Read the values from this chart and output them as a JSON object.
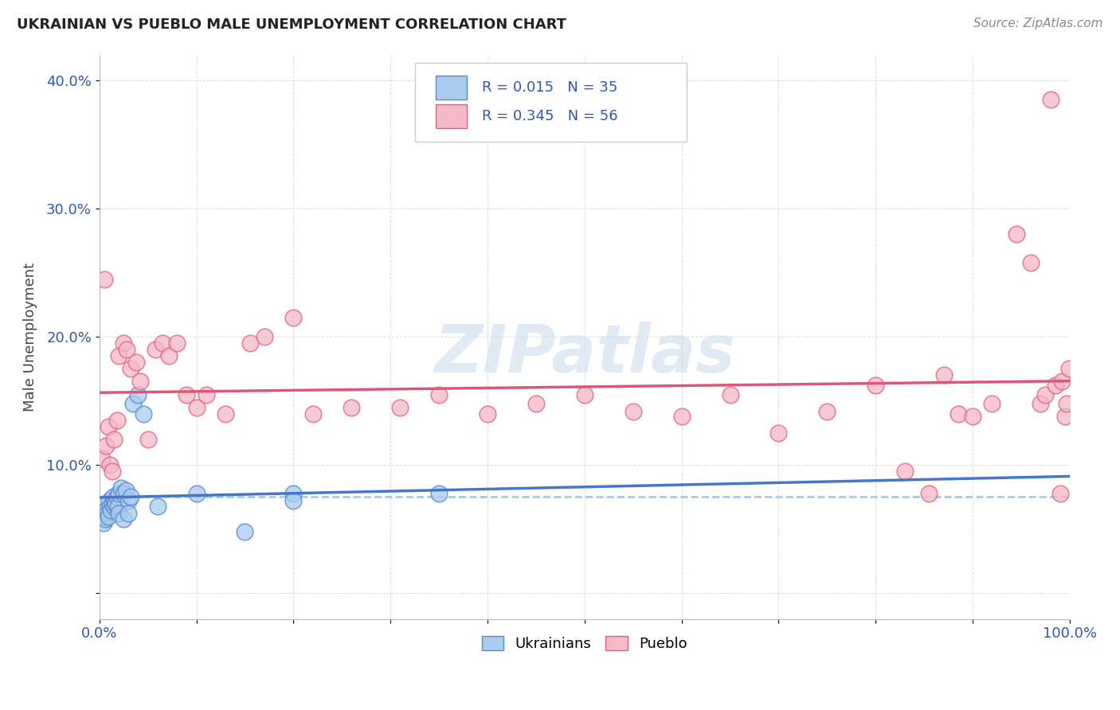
{
  "title": "UKRAINIAN VS PUEBLO MALE UNEMPLOYMENT CORRELATION CHART",
  "source_text": "Source: ZipAtlas.com",
  "ylabel": "Male Unemployment",
  "xlim": [
    0,
    1.0
  ],
  "ylim": [
    -0.02,
    0.42
  ],
  "xticks": [
    0.0,
    0.1,
    0.2,
    0.3,
    0.4,
    0.5,
    0.6,
    0.7,
    0.8,
    0.9,
    1.0
  ],
  "xticklabels": [
    "0.0%",
    "",
    "",
    "",
    "",
    "",
    "",
    "",
    "",
    "",
    "100.0%"
  ],
  "yticks": [
    0.0,
    0.1,
    0.2,
    0.3,
    0.4
  ],
  "yticklabels": [
    "",
    "10.0%",
    "20.0%",
    "30.0%",
    "40.0%"
  ],
  "legend_R1": "R = 0.015",
  "legend_N1": "N = 35",
  "legend_R2": "R = 0.345",
  "legend_N2": "N = 56",
  "ukr_color": "#aaccee",
  "pueblo_color": "#f5b8c8",
  "ukr_edge_color": "#5588cc",
  "pueblo_edge_color": "#e06080",
  "ukr_line_color": "#4477cc",
  "pueblo_line_color": "#dd5577",
  "ukr_dash_color": "#88bbee",
  "ukr_scatter_x": [
    0.003,
    0.004,
    0.005,
    0.006,
    0.007,
    0.008,
    0.009,
    0.01,
    0.011,
    0.012,
    0.013,
    0.014,
    0.015,
    0.016,
    0.017,
    0.018,
    0.019,
    0.02,
    0.022,
    0.025,
    0.027,
    0.03,
    0.032,
    0.035,
    0.04,
    0.045,
    0.06,
    0.1,
    0.15,
    0.2,
    0.02,
    0.025,
    0.03,
    0.2,
    0.35
  ],
  "ukr_scatter_y": [
    0.062,
    0.055,
    0.06,
    0.058,
    0.065,
    0.063,
    0.06,
    0.072,
    0.068,
    0.065,
    0.07,
    0.075,
    0.068,
    0.072,
    0.07,
    0.075,
    0.068,
    0.078,
    0.082,
    0.078,
    0.08,
    0.072,
    0.075,
    0.148,
    0.155,
    0.14,
    0.068,
    0.078,
    0.048,
    0.078,
    0.062,
    0.058,
    0.062,
    0.072,
    0.078
  ],
  "pueblo_scatter_x": [
    0.003,
    0.005,
    0.007,
    0.009,
    0.011,
    0.013,
    0.015,
    0.018,
    0.02,
    0.025,
    0.028,
    0.032,
    0.038,
    0.042,
    0.05,
    0.058,
    0.065,
    0.072,
    0.08,
    0.09,
    0.1,
    0.11,
    0.13,
    0.155,
    0.17,
    0.2,
    0.22,
    0.26,
    0.31,
    0.35,
    0.4,
    0.45,
    0.5,
    0.55,
    0.6,
    0.65,
    0.7,
    0.75,
    0.8,
    0.83,
    0.855,
    0.87,
    0.885,
    0.9,
    0.92,
    0.945,
    0.96,
    0.97,
    0.975,
    0.98,
    0.985,
    0.99,
    0.992,
    0.995,
    0.997,
    0.999
  ],
  "pueblo_scatter_y": [
    0.105,
    0.245,
    0.115,
    0.13,
    0.1,
    0.095,
    0.12,
    0.135,
    0.185,
    0.195,
    0.19,
    0.175,
    0.18,
    0.165,
    0.12,
    0.19,
    0.195,
    0.185,
    0.195,
    0.155,
    0.145,
    0.155,
    0.14,
    0.195,
    0.2,
    0.215,
    0.14,
    0.145,
    0.145,
    0.155,
    0.14,
    0.148,
    0.155,
    0.142,
    0.138,
    0.155,
    0.125,
    0.142,
    0.162,
    0.095,
    0.078,
    0.17,
    0.14,
    0.138,
    0.148,
    0.28,
    0.258,
    0.148,
    0.155,
    0.385,
    0.162,
    0.078,
    0.165,
    0.138,
    0.148,
    0.175
  ],
  "watermark": "ZIPatlas",
  "background_color": "#ffffff",
  "grid_color": "#dddddd",
  "tick_label_color": "#3355aa"
}
